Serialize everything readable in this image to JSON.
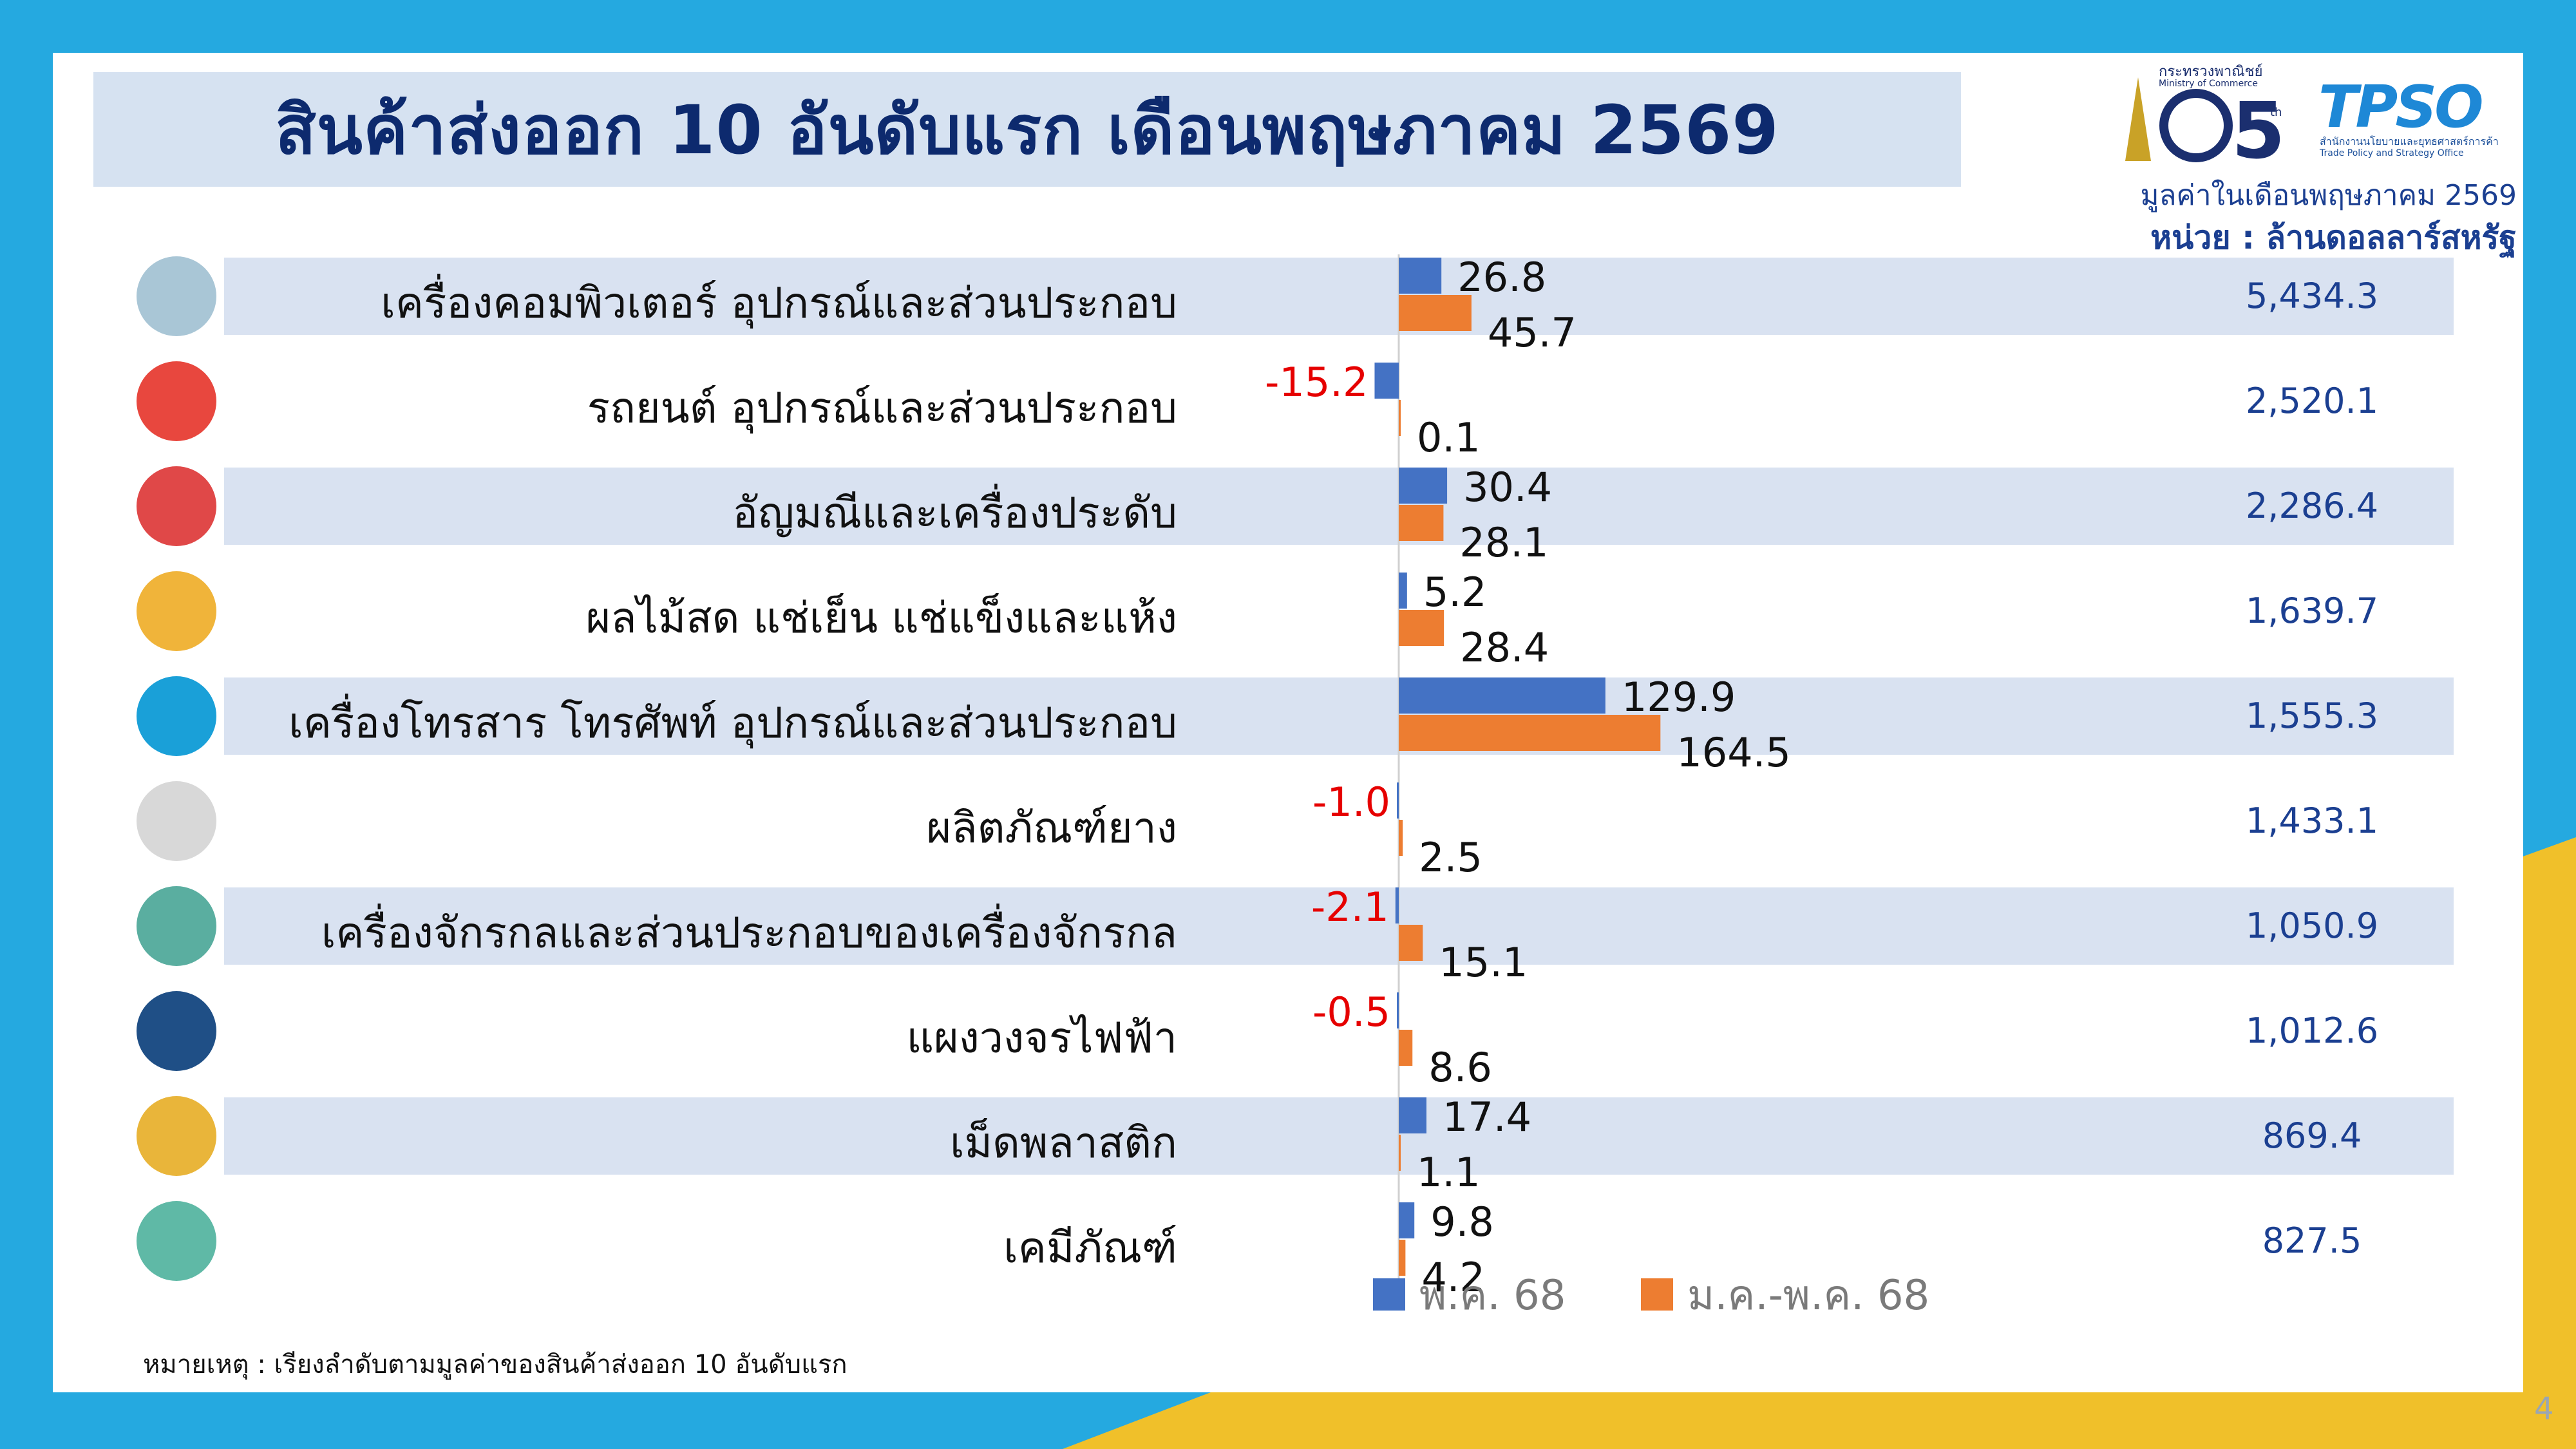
{
  "title": "สินค้าส่งออก 10 อันดับแรก เดือนพฤษภาคม 2569",
  "logos": {
    "moc_line1": "กระทรวงพาณิชย์",
    "moc_line2": "Ministry of Commerce",
    "tps_name": "TPSO",
    "tps_line1": "สำนักงานนโยบายและยุทธศาสตร์การค้า",
    "tps_line2": "Trade Policy and Strategy Office"
  },
  "unit_note_1": "มูลค่าในเดือนพฤษภาคม 2569",
  "unit_note_2": "หน่วย : ล้านดอลลาร์สหรัฐ",
  "footnote": "หมายเหตุ : เรียงลำดับตามมูลค่าของสินค้าส่งออก 10 อันดับแรก",
  "page_number": "4",
  "colors": {
    "series1": "#4472c4",
    "series2": "#ed7d31",
    "negative_label": "#e60000",
    "band": "#d9e2f1"
  },
  "chart_data": {
    "type": "bar",
    "orientation": "horizontal",
    "categories": [
      "เครื่องคอมพิวเตอร์ อุปกรณ์และส่วนประกอบ",
      "รถยนต์ อุปกรณ์และส่วนประกอบ",
      "อัญมณีและเครื่องประดับ",
      "ผลไม้สด แช่เย็น แช่แข็งและแห้ง",
      "เครื่องโทรสาร โทรศัพท์ อุปกรณ์และส่วนประกอบ",
      "ผลิตภัณฑ์ยาง",
      "เครื่องจักรกลและส่วนประกอบของเครื่องจักรกล",
      "แผงวงจรไฟฟ้า",
      "เม็ดพลาสติก",
      "เคมีภัณฑ์"
    ],
    "icons": [
      "computer-icon",
      "car-icon",
      "gem-icon",
      "fruit-icon",
      "phone-icon",
      "rubber-tapping-icon",
      "gear-icon",
      "circuit-icon",
      "plastic-pellet-icon",
      "chemistry-icon"
    ],
    "series": [
      {
        "name": "พ.ค. 68",
        "values": [
          26.8,
          -15.2,
          30.4,
          5.2,
          129.9,
          -1.0,
          -2.1,
          -0.5,
          17.4,
          9.8
        ],
        "labels": [
          "26.8",
          "-15.2",
          "30.4",
          "5.2",
          "129.9",
          "-1.0",
          "-2.1",
          "-0.5",
          "17.4",
          "9.8"
        ]
      },
      {
        "name": "ม.ค.-พ.ค. 68",
        "values": [
          45.7,
          0.1,
          28.1,
          28.4,
          164.5,
          2.5,
          15.1,
          8.6,
          1.1,
          4.2
        ],
        "labels": [
          "45.7",
          "0.1",
          "28.1",
          "28.4",
          "164.5",
          "2.5",
          "15.1",
          "8.6",
          "1.1",
          "4.2"
        ]
      }
    ],
    "totals": [
      "5,434.3",
      "2,520.1",
      "2,286.4",
      "1,639.7",
      "1,555.3",
      "1,433.1",
      "1,050.9",
      "1,012.6",
      "869.4",
      "827.5"
    ],
    "legend_position": "bottom",
    "grid": false
  }
}
